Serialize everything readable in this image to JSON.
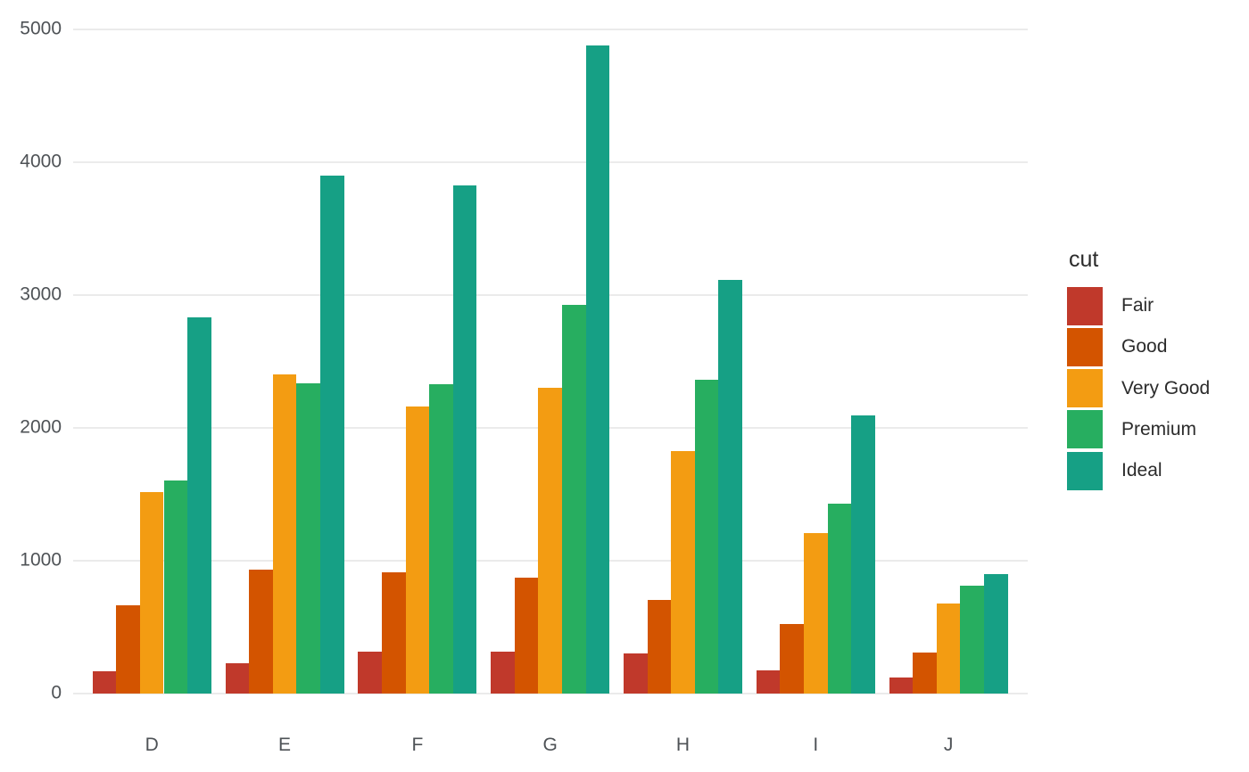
{
  "chart_data": {
    "type": "bar",
    "mode": "grouped",
    "title": "",
    "xlabel": "",
    "ylabel": "",
    "legend_title": "cut",
    "legend_position": "right",
    "grid": true,
    "categories": [
      "D",
      "E",
      "F",
      "G",
      "H",
      "I",
      "J"
    ],
    "series": [
      {
        "name": "Fair",
        "color": "#c0392b",
        "values": [
          163,
          224,
          312,
          314,
          303,
          175,
          119
        ]
      },
      {
        "name": "Good",
        "color": "#d35400",
        "values": [
          662,
          933,
          909,
          871,
          702,
          522,
          307
        ]
      },
      {
        "name": "Very Good",
        "color": "#f39c12",
        "values": [
          1513,
          2400,
          2164,
          2299,
          1824,
          1204,
          678
        ]
      },
      {
        "name": "Premium",
        "color": "#27ae60",
        "values": [
          1603,
          2337,
          2331,
          2924,
          2360,
          1428,
          808
        ]
      },
      {
        "name": "Ideal",
        "color": "#16a085",
        "values": [
          2834,
          3903,
          3826,
          4884,
          3115,
          2093,
          896
        ]
      }
    ],
    "yticks": [
      0,
      1000,
      2000,
      3000,
      4000,
      5000
    ],
    "ylim": [
      0,
      5150
    ],
    "colors": {
      "background": "#ffffff",
      "gridline": "#ebebeb",
      "axis_text": "#4e5256",
      "legend_text": "#2b2b2b"
    }
  }
}
